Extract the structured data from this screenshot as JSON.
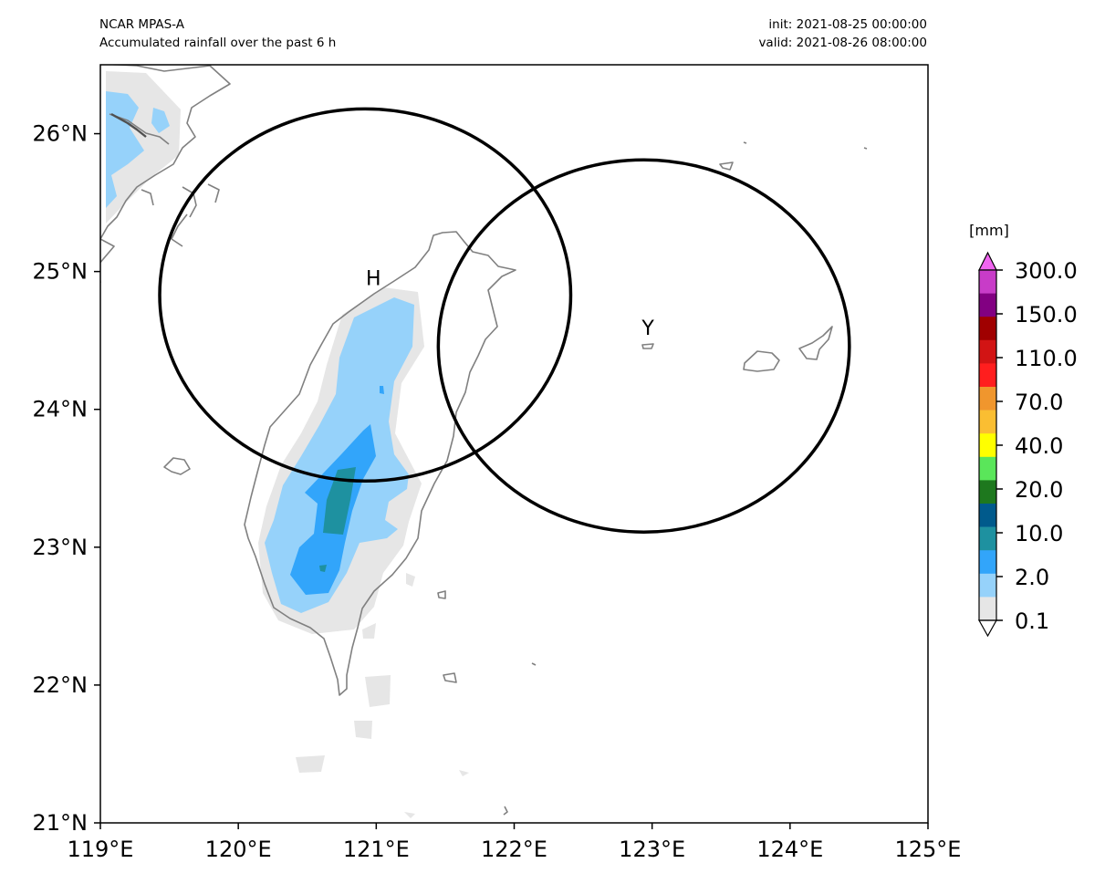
{
  "header": {
    "model": "NCAR MPAS-A",
    "field_title": "Accumulated rainfall over the past 6 h",
    "init": "init: 2021-08-25 00:00:00",
    "valid": "valid: 2021-08-26 08:00:00"
  },
  "map": {
    "lon_range": [
      119,
      125
    ],
    "lat_range": [
      21,
      26.5
    ],
    "x_ticks": [
      {
        "lon": 119,
        "label": "119°E"
      },
      {
        "lon": 120,
        "label": "120°E"
      },
      {
        "lon": 121,
        "label": "121°E"
      },
      {
        "lon": 122,
        "label": "122°E"
      },
      {
        "lon": 123,
        "label": "123°E"
      },
      {
        "lon": 124,
        "label": "124°E"
      },
      {
        "lon": 125,
        "label": "125°E"
      }
    ],
    "y_ticks": [
      {
        "lat": 21,
        "label": "21°N"
      },
      {
        "lat": 22,
        "label": "22°N"
      },
      {
        "lat": 23,
        "label": "23°N"
      },
      {
        "lat": 24,
        "label": "24°N"
      },
      {
        "lat": 25,
        "label": "25°N"
      },
      {
        "lat": 26,
        "label": "26°N"
      }
    ],
    "markers": [
      {
        "label": "H",
        "lon": 120.98,
        "lat": 24.9
      },
      {
        "label": "Y",
        "lon": 122.97,
        "lat": 24.54
      }
    ],
    "circles": [
      {
        "center_lon": 120.92,
        "center_lat": 24.83,
        "radius_lon": 1.49,
        "radius_lat": 1.35
      },
      {
        "center_lon": 122.94,
        "center_lat": 24.46,
        "radius_lon": 1.49,
        "radius_lat": 1.35
      }
    ],
    "colors": {
      "coastline": "#808080",
      "rain_0_1": "#e6e6e6",
      "rain_2": "#96d2fa",
      "rain_5": "#32a5fa",
      "rain_10": "#1e91a0"
    }
  },
  "colorbar": {
    "unit": "[mm]",
    "labels": [
      "300.0",
      "150.0",
      "110.0",
      "70.0",
      "40.0",
      "20.0",
      "10.0",
      "2.0",
      "0.1"
    ],
    "colors": [
      "#f065f0",
      "#c83cc8",
      "#820082",
      "#a00000",
      "#d21414",
      "#ff1e1e",
      "#f0962d",
      "#fabe32",
      "#ffff00",
      "#5ae65a",
      "#1e781e",
      "#005a8c",
      "#1e91a0",
      "#32a5fa",
      "#96d2fa",
      "#e6e6e6",
      "#ffffff"
    ]
  }
}
